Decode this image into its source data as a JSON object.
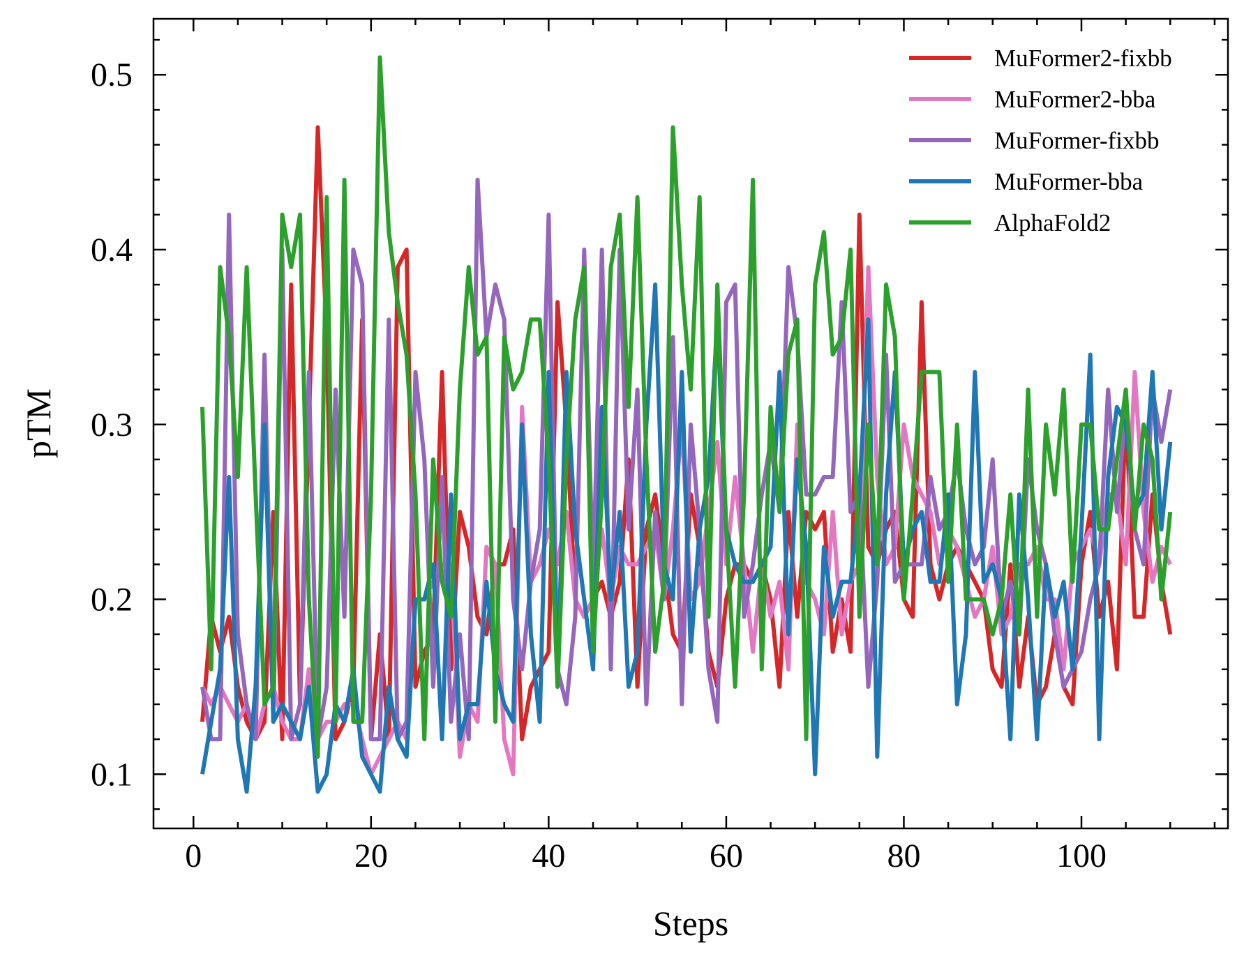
{
  "chart_data": {
    "type": "line",
    "xlabel": "Steps",
    "ylabel": "pTM",
    "xlim": [
      -4.5,
      116.5
    ],
    "ylim": [
      0.069,
      0.532
    ],
    "xticks": [
      0,
      20,
      40,
      60,
      80,
      100
    ],
    "yticks": [
      0.1,
      0.2,
      0.3,
      0.4,
      0.5
    ],
    "xtick_labels": [
      "0",
      "20",
      "40",
      "60",
      "80",
      "100"
    ],
    "ytick_labels": [
      "0.1",
      "0.2",
      "0.3",
      "0.4",
      "0.5"
    ],
    "x_minor_step": 5,
    "y_minor_step": 0.02,
    "grid": false,
    "legend_position": "top-right",
    "x": [
      1,
      2,
      3,
      4,
      5,
      6,
      7,
      8,
      9,
      10,
      11,
      12,
      13,
      14,
      15,
      16,
      17,
      18,
      19,
      20,
      21,
      22,
      23,
      24,
      25,
      26,
      27,
      28,
      29,
      30,
      31,
      32,
      33,
      34,
      35,
      36,
      37,
      38,
      39,
      40,
      41,
      42,
      43,
      44,
      45,
      46,
      47,
      48,
      49,
      50,
      51,
      52,
      53,
      54,
      55,
      56,
      57,
      58,
      59,
      60,
      61,
      62,
      63,
      64,
      65,
      66,
      67,
      68,
      69,
      70,
      71,
      72,
      73,
      74,
      75,
      76,
      77,
      78,
      79,
      80,
      81,
      82,
      83,
      84,
      85,
      86,
      87,
      88,
      89,
      90,
      91,
      92,
      93,
      94,
      95,
      96,
      97,
      98,
      99,
      100,
      101,
      102,
      103,
      104,
      105,
      106,
      107,
      108,
      109,
      110
    ],
    "series": [
      {
        "name": "MuFormer2-fixbb",
        "color": "#d62728",
        "values": [
          0.13,
          0.19,
          0.17,
          0.19,
          0.15,
          0.13,
          0.12,
          0.13,
          0.25,
          0.12,
          0.38,
          0.14,
          0.3,
          0.47,
          0.35,
          0.12,
          0.13,
          0.15,
          0.36,
          0.12,
          0.18,
          0.12,
          0.39,
          0.4,
          0.15,
          0.17,
          0.18,
          0.33,
          0.16,
          0.25,
          0.23,
          0.19,
          0.18,
          0.22,
          0.22,
          0.24,
          0.12,
          0.15,
          0.16,
          0.17,
          0.37,
          0.3,
          0.2,
          0.19,
          0.2,
          0.21,
          0.19,
          0.21,
          0.28,
          0.15,
          0.24,
          0.26,
          0.22,
          0.18,
          0.17,
          0.26,
          0.23,
          0.17,
          0.15,
          0.2,
          0.22,
          0.22,
          0.21,
          0.22,
          0.2,
          0.15,
          0.25,
          0.19,
          0.25,
          0.24,
          0.25,
          0.17,
          0.2,
          0.17,
          0.42,
          0.23,
          0.22,
          0.24,
          0.25,
          0.2,
          0.19,
          0.37,
          0.22,
          0.2,
          0.22,
          0.23,
          0.22,
          0.21,
          0.2,
          0.16,
          0.15,
          0.22,
          0.15,
          0.19,
          0.14,
          0.15,
          0.18,
          0.15,
          0.14,
          0.22,
          0.25,
          0.19,
          0.21,
          0.16,
          0.31,
          0.19,
          0.19,
          0.26,
          0.21,
          0.18
        ]
      },
      {
        "name": "MuFormer2-bba",
        "color": "#e377c2",
        "values": [
          0.15,
          0.14,
          0.15,
          0.14,
          0.13,
          0.14,
          0.12,
          0.14,
          0.15,
          0.13,
          0.12,
          0.12,
          0.16,
          0.12,
          0.13,
          0.13,
          0.14,
          0.14,
          0.12,
          0.1,
          0.11,
          0.12,
          0.13,
          0.12,
          0.2,
          0.2,
          0.21,
          0.22,
          0.22,
          0.11,
          0.14,
          0.13,
          0.23,
          0.22,
          0.12,
          0.1,
          0.31,
          0.21,
          0.22,
          0.24,
          0.22,
          0.25,
          0.2,
          0.19,
          0.2,
          0.24,
          0.2,
          0.23,
          0.22,
          0.22,
          0.23,
          0.24,
          0.2,
          0.24,
          0.3,
          0.2,
          0.21,
          0.25,
          0.29,
          0.22,
          0.27,
          0.22,
          0.17,
          0.22,
          0.19,
          0.21,
          0.16,
          0.3,
          0.21,
          0.2,
          0.18,
          0.25,
          0.18,
          0.21,
          0.22,
          0.39,
          0.27,
          0.22,
          0.23,
          0.3,
          0.27,
          0.26,
          0.25,
          0.22,
          0.24,
          0.23,
          0.21,
          0.19,
          0.2,
          0.23,
          0.18,
          0.19,
          0.22,
          0.22,
          0.23,
          0.2,
          0.2,
          0.16,
          0.22,
          0.23,
          0.24,
          0.22,
          0.26,
          0.26,
          0.22,
          0.33,
          0.25,
          0.21,
          0.23,
          0.22
        ]
      },
      {
        "name": "MuFormer-fixbb",
        "color": "#9467bd",
        "values": [
          0.15,
          0.12,
          0.12,
          0.42,
          0.18,
          0.14,
          0.12,
          0.34,
          0.13,
          0.4,
          0.12,
          0.14,
          0.33,
          0.12,
          0.15,
          0.32,
          0.19,
          0.4,
          0.38,
          0.12,
          0.12,
          0.36,
          0.12,
          0.13,
          0.33,
          0.28,
          0.15,
          0.27,
          0.13,
          0.18,
          0.12,
          0.44,
          0.35,
          0.38,
          0.36,
          0.2,
          0.16,
          0.21,
          0.24,
          0.42,
          0.16,
          0.14,
          0.19,
          0.4,
          0.21,
          0.4,
          0.16,
          0.4,
          0.24,
          0.32,
          0.14,
          0.25,
          0.2,
          0.35,
          0.14,
          0.3,
          0.24,
          0.16,
          0.13,
          0.37,
          0.38,
          0.19,
          0.22,
          0.26,
          0.29,
          0.25,
          0.39,
          0.35,
          0.26,
          0.26,
          0.27,
          0.27,
          0.37,
          0.25,
          0.26,
          0.15,
          0.21,
          0.34,
          0.21,
          0.22,
          0.22,
          0.22,
          0.27,
          0.24,
          0.25,
          0.28,
          0.24,
          0.22,
          0.23,
          0.28,
          0.19,
          0.21,
          0.18,
          0.28,
          0.24,
          0.22,
          0.18,
          0.15,
          0.16,
          0.17,
          0.2,
          0.22,
          0.32,
          0.25,
          0.31,
          0.24,
          0.22,
          0.32,
          0.29,
          0.32
        ]
      },
      {
        "name": "MuFormer-bba",
        "color": "#1f77b4",
        "values": [
          0.1,
          0.13,
          0.16,
          0.27,
          0.12,
          0.09,
          0.15,
          0.3,
          0.13,
          0.14,
          0.13,
          0.12,
          0.15,
          0.09,
          0.1,
          0.14,
          0.13,
          0.16,
          0.11,
          0.1,
          0.09,
          0.15,
          0.12,
          0.11,
          0.2,
          0.2,
          0.22,
          0.12,
          0.26,
          0.12,
          0.14,
          0.14,
          0.21,
          0.16,
          0.14,
          0.13,
          0.3,
          0.18,
          0.13,
          0.33,
          0.15,
          0.33,
          0.24,
          0.2,
          0.16,
          0.31,
          0.2,
          0.25,
          0.15,
          0.17,
          0.3,
          0.38,
          0.22,
          0.2,
          0.33,
          0.17,
          0.24,
          0.27,
          0.36,
          0.24,
          0.22,
          0.21,
          0.21,
          0.22,
          0.23,
          0.33,
          0.18,
          0.28,
          0.23,
          0.1,
          0.23,
          0.19,
          0.21,
          0.21,
          0.26,
          0.36,
          0.11,
          0.26,
          0.33,
          0.22,
          0.24,
          0.25,
          0.21,
          0.21,
          0.26,
          0.14,
          0.18,
          0.33,
          0.21,
          0.22,
          0.2,
          0.12,
          0.26,
          0.2,
          0.12,
          0.22,
          0.19,
          0.21,
          0.16,
          0.24,
          0.34,
          0.12,
          0.27,
          0.31,
          0.3,
          0.25,
          0.26,
          0.33,
          0.24,
          0.29
        ]
      },
      {
        "name": "AlphaFold2",
        "color": "#2ca02c",
        "values": [
          0.31,
          0.16,
          0.39,
          0.35,
          0.27,
          0.39,
          0.26,
          0.14,
          0.15,
          0.42,
          0.39,
          0.42,
          0.2,
          0.11,
          0.43,
          0.13,
          0.44,
          0.13,
          0.13,
          0.26,
          0.51,
          0.41,
          0.37,
          0.34,
          0.26,
          0.12,
          0.28,
          0.21,
          0.19,
          0.32,
          0.39,
          0.34,
          0.35,
          0.13,
          0.35,
          0.32,
          0.33,
          0.36,
          0.36,
          0.28,
          0.15,
          0.28,
          0.36,
          0.39,
          0.17,
          0.26,
          0.39,
          0.42,
          0.31,
          0.43,
          0.28,
          0.17,
          0.21,
          0.47,
          0.38,
          0.32,
          0.43,
          0.19,
          0.38,
          0.24,
          0.15,
          0.26,
          0.44,
          0.16,
          0.31,
          0.25,
          0.34,
          0.36,
          0.12,
          0.38,
          0.41,
          0.34,
          0.35,
          0.4,
          0.19,
          0.3,
          0.22,
          0.38,
          0.35,
          0.2,
          0.26,
          0.33,
          0.33,
          0.33,
          0.21,
          0.3,
          0.2,
          0.2,
          0.2,
          0.18,
          0.2,
          0.26,
          0.18,
          0.32,
          0.19,
          0.3,
          0.26,
          0.32,
          0.21,
          0.3,
          0.3,
          0.24,
          0.24,
          0.28,
          0.32,
          0.24,
          0.3,
          0.28,
          0.2,
          0.25
        ]
      }
    ]
  }
}
